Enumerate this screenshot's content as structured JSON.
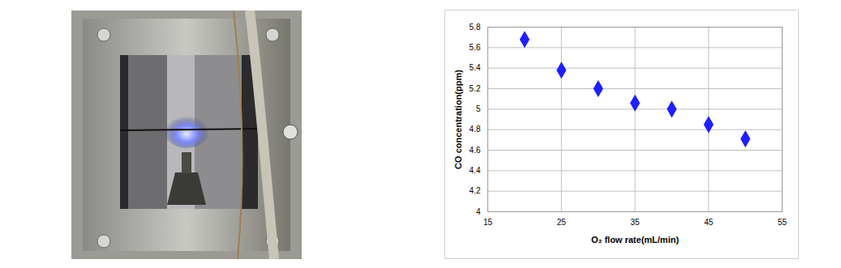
{
  "chart_data": {
    "type": "scatter",
    "xlabel": "O₂ flow rate(mL/min)",
    "ylabel": "CO concentration(ppm)",
    "x": [
      20,
      25,
      30,
      35,
      40,
      45,
      50
    ],
    "values": [
      5.68,
      5.38,
      5.2,
      5.06,
      5.0,
      4.85,
      4.71
    ],
    "color": "#1f1fff",
    "marker": "diamond",
    "xlim": [
      15,
      55
    ],
    "xticks": [
      15,
      25,
      35,
      45,
      55
    ],
    "ylim": [
      4,
      5.8
    ],
    "yticks": [
      4,
      4.2,
      4.4,
      4.6,
      4.8,
      5,
      5.2,
      5.4,
      5.6,
      5.8
    ],
    "grid": true
  }
}
